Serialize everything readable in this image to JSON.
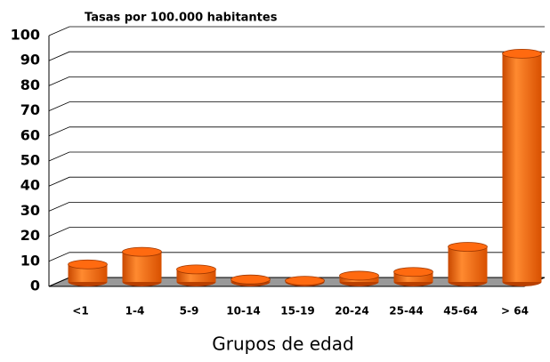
{
  "chart_data": {
    "type": "bar",
    "title": "Tasas por 100.000 habitantes",
    "x_label": "Grupos de edad",
    "categories": [
      "<1",
      "1-4",
      "5-9",
      "10-14",
      "15-19",
      "20-24",
      "25-44",
      "45-64",
      "> 64"
    ],
    "values": [
      7,
      12,
      5,
      1,
      0.5,
      2.5,
      4,
      14,
      91
    ],
    "color": "#ff6a10",
    "ylim": [
      0,
      100
    ],
    "yticks": [
      0,
      10,
      20,
      30,
      40,
      50,
      60,
      70,
      80,
      90,
      100
    ],
    "grid": true
  }
}
